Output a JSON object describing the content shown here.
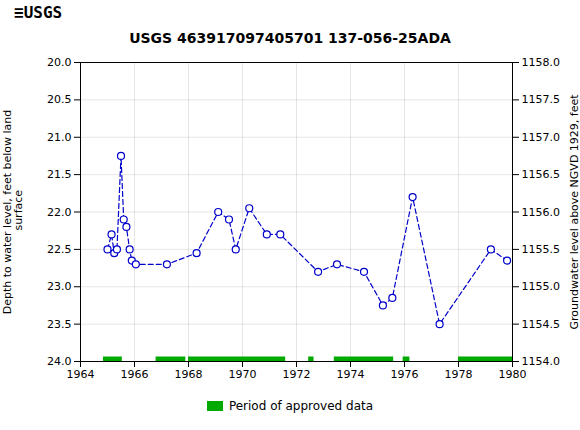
{
  "chart_data": {
    "type": "line",
    "title": "USGS 463917097405701 137-056-25ADA",
    "annotations": [
      {
        "text": "≡USGS"
      }
    ],
    "ylabel": "Depth to water level, feet below land\n surface",
    "y2label": "Groundwater level above NGVD 1929, feet",
    "xlim": [
      1964,
      1980
    ],
    "xticks": [
      1964,
      1966,
      1968,
      1970,
      1972,
      1974,
      1976,
      1978,
      1980
    ],
    "ylim": [
      24.0,
      20.0
    ],
    "yticks": [
      {
        "value": 20.0,
        "label": "20.0"
      },
      20.5,
      {
        "value": 21.0,
        "label": "21.0"
      },
      21.5,
      {
        "value": 22.0,
        "label": "22.0"
      },
      22.5,
      {
        "value": 23.0,
        "label": "23.0"
      },
      23.5,
      {
        "value": 24.0,
        "label": "24.0"
      }
    ],
    "y2lim": [
      1154.0,
      1158.0
    ],
    "y2ticks": [
      {
        "value": 1154.0,
        "label": "1154.0"
      },
      1154.5,
      {
        "value": 1155.0,
        "label": "1155.0"
      },
      1155.5,
      {
        "value": 1156.0,
        "label": "1156.0"
      },
      1156.5,
      {
        "value": 1157.0,
        "label": "1157.0"
      },
      1157.5,
      {
        "value": 1158.0,
        "label": "1158.0"
      }
    ],
    "grid": true,
    "legend": "bottom",
    "series": [
      {
        "type": "line",
        "color": "#0000cc",
        "marker": "circle",
        "line_style": "dashed",
        "x": [
          1965.0,
          1965.15,
          1965.25,
          1965.35,
          1965.5,
          1965.6,
          1965.7,
          1965.82,
          1965.9,
          1966.05,
          1967.2,
          1968.3,
          1969.1,
          1969.5,
          1969.75,
          1970.25,
          1970.9,
          1971.4,
          1972.8,
          1973.5,
          1974.5,
          1975.2,
          1975.55,
          1976.3,
          1977.3,
          1979.2,
          1979.8
        ],
        "values": [
          22.5,
          22.3,
          22.55,
          22.5,
          21.25,
          22.1,
          22.2,
          22.5,
          22.65,
          22.7,
          22.7,
          22.55,
          22.0,
          22.1,
          22.5,
          21.95,
          22.3,
          22.3,
          22.8,
          22.7,
          22.8,
          23.25,
          23.15,
          21.8,
          23.5,
          22.5,
          22.65
        ]
      },
      {
        "type": "bar",
        "orientation": "horizontal",
        "name": "Period of approved data",
        "color": "#00aa00",
        "x_start": [
          1964.85,
          1966.8,
          1968.0,
          1972.45,
          1973.4,
          1975.95,
          1978.0
        ],
        "x_end": [
          1965.55,
          1967.9,
          1971.6,
          1972.65,
          1975.6,
          1976.2,
          1980.0
        ],
        "values": [
          24.0,
          24.0,
          24.0,
          24.0,
          24.0,
          24.0,
          24.0
        ]
      }
    ]
  }
}
